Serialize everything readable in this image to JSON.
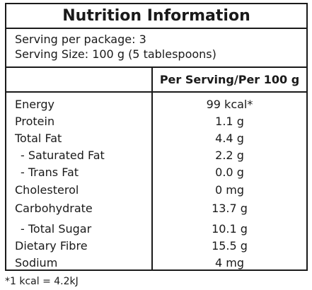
{
  "title": "Nutrition Information",
  "serving": {
    "per_package": "Serving per package: 3",
    "size": "Serving Size: 100 g (5 tablespoons)"
  },
  "column_header": "Per Serving/Per 100 g",
  "rows": [
    {
      "name": "Energy",
      "value": "99 kcal*"
    },
    {
      "name": "Protein",
      "value": "1.1 g"
    },
    {
      "name": "Total Fat",
      "value": "4.4 g"
    },
    {
      "name": "- Saturated Fat",
      "value": "2.2 g"
    },
    {
      "name": "- Trans Fat",
      "value": "0.0 g"
    },
    {
      "name": "Cholesterol",
      "value": "0 mg"
    },
    {
      "name": "Carbohydrate",
      "value": "13.7 g"
    },
    {
      "name": "- Total Sugar",
      "value": "10.1 g"
    },
    {
      "name": "Dietary Fibre",
      "value": "15.5 g"
    },
    {
      "name": "Sodium",
      "value": "4 mg"
    }
  ],
  "footnote": "*1 kcal = 4.2kJ"
}
